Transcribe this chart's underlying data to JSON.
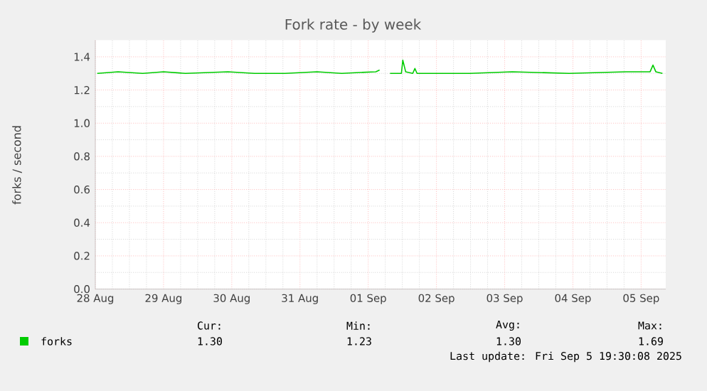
{
  "chart_data": {
    "type": "line",
    "title": "Fork rate - by week",
    "ylabel": "forks / second",
    "xlim": [
      "2025-08-28T12:00",
      "2025-09-05T20:40"
    ],
    "xticks": [
      {
        "value": "2025-08-28T12:00",
        "label": "28 Aug"
      },
      {
        "value": "2025-08-29T12:00",
        "label": "29 Aug"
      },
      {
        "value": "2025-08-30T12:00",
        "label": "30 Aug"
      },
      {
        "value": "2025-08-31T12:00",
        "label": "31 Aug"
      },
      {
        "value": "2025-09-01T12:00",
        "label": "01 Sep"
      },
      {
        "value": "2025-09-02T12:00",
        "label": "02 Sep"
      },
      {
        "value": "2025-09-03T12:00",
        "label": "03 Sep"
      },
      {
        "value": "2025-09-04T12:00",
        "label": "04 Sep"
      },
      {
        "value": "2025-09-05T12:00",
        "label": "05 Sep"
      }
    ],
    "ylim": [
      0,
      1.5
    ],
    "yticks": [
      {
        "value": 0,
        "label": "0.0"
      },
      {
        "value": 0.2,
        "label": "0.2"
      },
      {
        "value": 0.4,
        "label": "0.4"
      },
      {
        "value": 0.6,
        "label": "0.6"
      },
      {
        "value": 0.8,
        "label": "0.8"
      },
      {
        "value": 1.0,
        "label": "1.0"
      },
      {
        "value": 1.2,
        "label": "1.2"
      },
      {
        "value": 1.4,
        "label": "1.4"
      }
    ],
    "grid": true,
    "legend": "bottom left",
    "series": [
      {
        "name": "forks",
        "color": "#00cc00",
        "x": [
          "2025-08-28T12:40",
          "2025-08-28T20:00",
          "2025-08-29T04:40",
          "2025-08-29T12:00",
          "2025-08-29T19:40",
          "2025-08-30T10:40",
          "2025-08-30T20:00",
          "2025-08-31T06:40",
          "2025-08-31T18:00",
          "2025-09-01T02:40",
          "2025-09-01T14:40",
          "2025-09-01T16:00",
          "2025-09-01T17:00",
          "2025-09-01T19:40",
          "2025-09-01T23:40",
          "2025-09-02T00:10",
          "2025-09-02T01:10",
          "2025-09-02T03:40",
          "2025-09-02T04:25",
          "2025-09-02T05:10",
          "2025-09-02T23:40",
          "2025-09-03T14:40",
          "2025-09-04T10:40",
          "2025-09-05T06:40",
          "2025-09-05T15:10",
          "2025-09-05T16:10",
          "2025-09-05T17:10",
          "2025-09-05T19:30"
        ],
        "values": [
          1.3,
          1.31,
          1.3,
          1.31,
          1.3,
          1.31,
          1.3,
          1.3,
          1.31,
          1.3,
          1.31,
          1.32,
          null,
          1.3,
          1.3,
          1.38,
          1.31,
          1.3,
          1.33,
          1.3,
          1.3,
          1.31,
          1.3,
          1.31,
          1.31,
          1.35,
          1.31,
          1.3
        ]
      }
    ],
    "annotations": [
      "Cur:",
      "1.30",
      "Min:",
      "1.23",
      "Avg:",
      "1.30",
      "Max:",
      "1.69",
      "Last update: Fri Sep  5 19:30:08 2025"
    ]
  }
}
